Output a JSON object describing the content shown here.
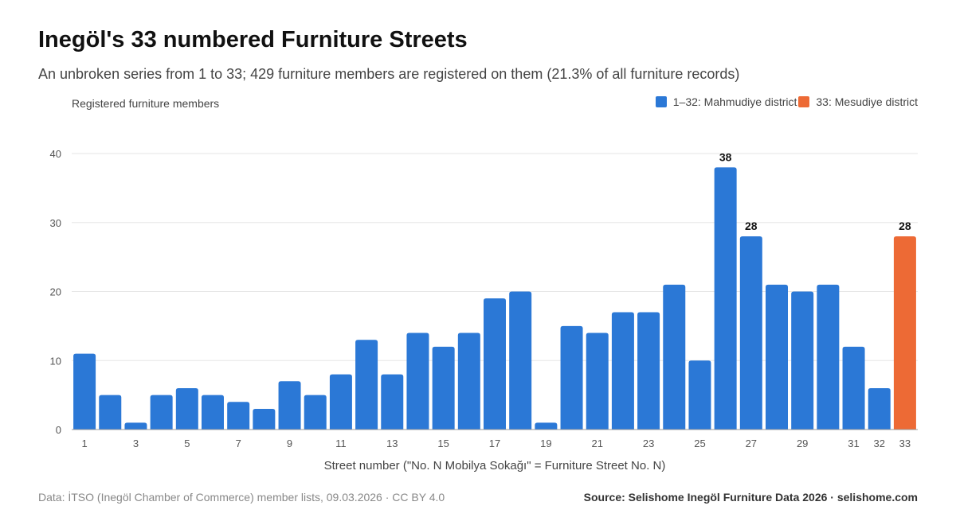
{
  "header": {
    "title": "Inegöl's 33 numbered Furniture Streets",
    "subtitle": "An unbroken series from 1 to 33; 429 furniture members are registered on them (21.3% of all furniture records)"
  },
  "footer": {
    "data_note": "Data: İTSO (Inegöl Chamber of Commerce) member lists, 09.03.2026 · CC BY 4.0",
    "source": "Source: Selishome Inegöl Furniture Data 2026 · selishome.com"
  },
  "colors": {
    "mahmudiye": "#2b78d6",
    "mesudiye": "#ed6a35",
    "grid": "#e6e6e6",
    "axis": "#999999"
  },
  "chart_data": {
    "type": "bar",
    "title": "Inegöl's 33 numbered Furniture Streets",
    "subtitle": "An unbroken series from 1 to 33; 429 furniture members are registered on them (21.3% of all furniture records)",
    "xlabel": "Street number (\"No. N Mobilya Sokağı\" = Furniture Street No. N)",
    "ylabel": "Registered furniture members",
    "ylim": [
      0,
      40
    ],
    "yticks": [
      0,
      10,
      20,
      30,
      40
    ],
    "grid": true,
    "legend_position": "top-right",
    "categories": [
      "1",
      "2",
      "3",
      "4",
      "5",
      "6",
      "7",
      "8",
      "9",
      "10",
      "11",
      "12",
      "13",
      "14",
      "15",
      "16",
      "17",
      "18",
      "19",
      "20",
      "21",
      "22",
      "23",
      "24",
      "25",
      "26",
      "27",
      "28",
      "29",
      "30",
      "31",
      "32",
      "33"
    ],
    "x_tick_labels": [
      "1",
      "",
      "3",
      "",
      "5",
      "",
      "7",
      "",
      "9",
      "",
      "11",
      "",
      "13",
      "",
      "15",
      "",
      "17",
      "",
      "19",
      "",
      "21",
      "",
      "23",
      "",
      "25",
      "",
      "27",
      "",
      "29",
      "",
      "31",
      "32",
      "33"
    ],
    "values": [
      11,
      5,
      1,
      5,
      6,
      5,
      4,
      3,
      7,
      5,
      8,
      13,
      8,
      14,
      12,
      14,
      19,
      20,
      1,
      15,
      14,
      17,
      17,
      21,
      10,
      38,
      28,
      21,
      20,
      21,
      12,
      6,
      28
    ],
    "series": [
      {
        "name": "1–32: Mahmudiye district",
        "categories_range": "1-32",
        "color": "#2b78d6"
      },
      {
        "name": "33: Mesudiye district",
        "categories_range": "33",
        "color": "#ed6a35"
      }
    ],
    "data_labels": [
      {
        "category": "26",
        "value": "38"
      },
      {
        "category": "27",
        "value": "28"
      },
      {
        "category": "33",
        "value": "28"
      }
    ]
  }
}
